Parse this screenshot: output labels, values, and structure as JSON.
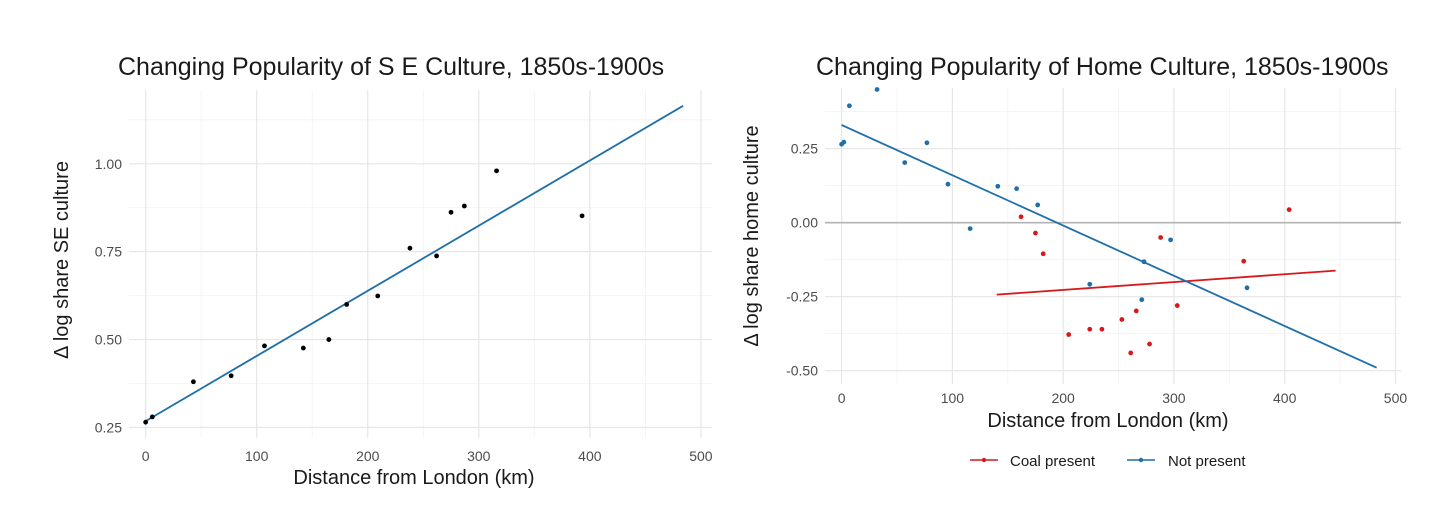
{
  "chart_data": [
    {
      "type": "scatter",
      "title": "Changing Popularity of S E Culture, 1850s-1900s",
      "xlabel": "Distance from London (km)",
      "ylabel": "Δ log share SE culture",
      "xlim": [
        -15,
        510
      ],
      "ylim": [
        0.22,
        1.21
      ],
      "x_ticks": [
        0,
        100,
        200,
        300,
        400,
        500
      ],
      "x_tick_labels": [
        "0",
        "100",
        "200",
        "300",
        "400",
        "500"
      ],
      "y_ticks": [
        0.25,
        0.5,
        0.75,
        1.0
      ],
      "y_tick_labels": [
        "0.25",
        "0.50",
        "0.75",
        "1.00"
      ],
      "grid": true,
      "series": [
        {
          "points": [
            {
              "x": 0,
              "y": 0.265
            },
            {
              "x": 6,
              "y": 0.28
            },
            {
              "x": 43,
              "y": 0.38
            },
            {
              "x": 77,
              "y": 0.397
            },
            {
              "x": 107,
              "y": 0.482
            },
            {
              "x": 142,
              "y": 0.476
            },
            {
              "x": 165,
              "y": 0.5
            },
            {
              "x": 181,
              "y": 0.6
            },
            {
              "x": 209,
              "y": 0.624
            },
            {
              "x": 238,
              "y": 0.76
            },
            {
              "x": 262,
              "y": 0.738
            },
            {
              "x": 275,
              "y": 0.862
            },
            {
              "x": 287,
              "y": 0.88
            },
            {
              "x": 316,
              "y": 0.98
            },
            {
              "x": 393,
              "y": 0.852
            }
          ],
          "color": "#000000",
          "fit_line": {
            "x": [
              0,
              484
            ],
            "y": [
              0.268,
              1.165
            ],
            "color": "#1f6fa8"
          }
        }
      ]
    },
    {
      "type": "scatter",
      "title": "Changing Popularity of Home Culture, 1850s-1900s",
      "xlabel": "Distance from London (km)",
      "ylabel": "Δ log share home culture",
      "xlim": [
        -15,
        505
      ],
      "ylim": [
        -0.545,
        0.455
      ],
      "x_ticks": [
        0,
        100,
        200,
        300,
        400,
        500
      ],
      "x_tick_labels": [
        "0",
        "100",
        "200",
        "300",
        "400",
        "500"
      ],
      "y_ticks": [
        -0.5,
        -0.25,
        0.0,
        0.25
      ],
      "y_tick_labels": [
        "-0.50",
        "-0.25",
        "0.00",
        "0.25"
      ],
      "hline": 0,
      "grid": true,
      "legend": "bottom",
      "series": [
        {
          "name": "Coal present",
          "color": "#d7191c",
          "points": [
            {
              "x": 162,
              "y": 0.02
            },
            {
              "x": 175,
              "y": -0.035
            },
            {
              "x": 182,
              "y": -0.105
            },
            {
              "x": 205,
              "y": -0.378
            },
            {
              "x": 224,
              "y": -0.36
            },
            {
              "x": 235,
              "y": -0.36
            },
            {
              "x": 253,
              "y": -0.327
            },
            {
              "x": 261,
              "y": -0.44
            },
            {
              "x": 266,
              "y": -0.298
            },
            {
              "x": 278,
              "y": -0.41
            },
            {
              "x": 288,
              "y": -0.05
            },
            {
              "x": 303,
              "y": -0.28
            },
            {
              "x": 363,
              "y": -0.13
            },
            {
              "x": 404,
              "y": 0.044
            }
          ],
          "fit_line": {
            "x": [
              140,
              446
            ],
            "y": [
              -0.243,
              -0.162
            ]
          }
        },
        {
          "name": "Not present",
          "color": "#1f6fa8",
          "points": [
            {
              "x": 0,
              "y": 0.265
            },
            {
              "x": 2,
              "y": 0.272
            },
            {
              "x": 7,
              "y": 0.395
            },
            {
              "x": 32,
              "y": 0.45
            },
            {
              "x": 57,
              "y": 0.203
            },
            {
              "x": 77,
              "y": 0.27
            },
            {
              "x": 96,
              "y": 0.13
            },
            {
              "x": 116,
              "y": -0.02
            },
            {
              "x": 141,
              "y": 0.123
            },
            {
              "x": 158,
              "y": 0.115
            },
            {
              "x": 177,
              "y": 0.06
            },
            {
              "x": 224,
              "y": -0.208
            },
            {
              "x": 271,
              "y": -0.26
            },
            {
              "x": 273,
              "y": -0.132
            },
            {
              "x": 297,
              "y": -0.058
            },
            {
              "x": 366,
              "y": -0.22
            }
          ],
          "fit_line": {
            "x": [
              0,
              483
            ],
            "y": [
              0.33,
              -0.49
            ]
          }
        }
      ]
    }
  ]
}
